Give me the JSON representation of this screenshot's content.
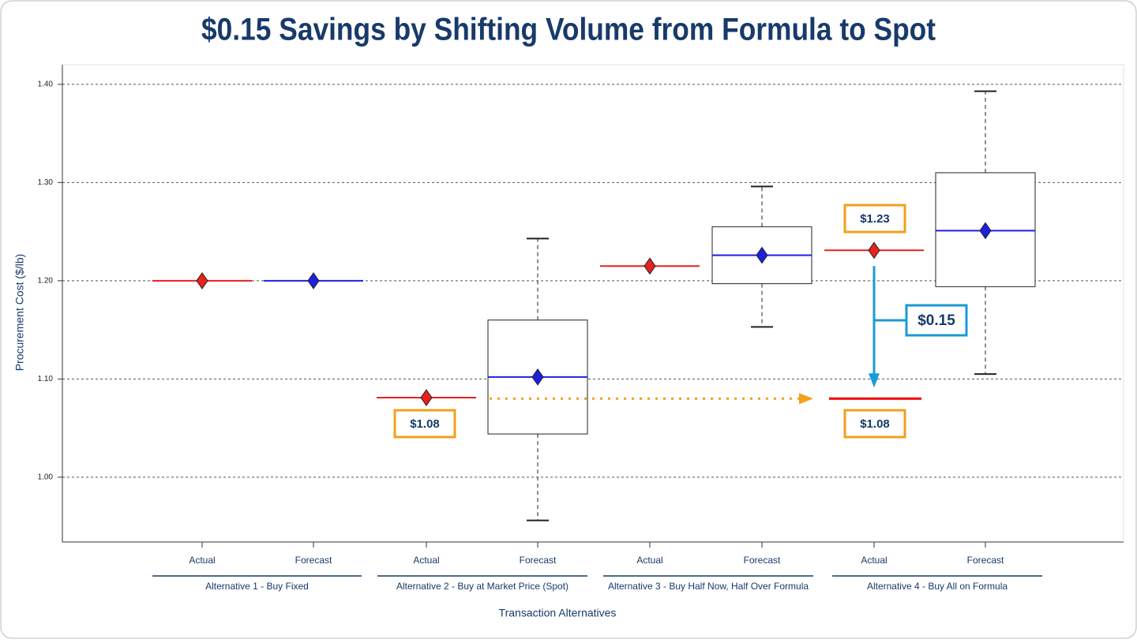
{
  "chart_data": {
    "type": "box",
    "title": "$0.15 Savings by Shifting Volume from Formula to Spot",
    "y_label": "Procurement Cost ($/lb)",
    "x_label": "Transaction Alternatives",
    "ylim": [
      0.934,
      1.42
    ],
    "yticks": [
      {
        "value": 1.0,
        "label": "1.00"
      },
      {
        "value": 1.1,
        "label": "1.10"
      },
      {
        "value": 1.2,
        "label": "1.20"
      },
      {
        "value": 1.3,
        "label": "1.30"
      },
      {
        "value": 1.4,
        "label": "1.40"
      }
    ],
    "grid": true,
    "actual_color": "#e8211d",
    "forecast_color": "#1f1fe0",
    "groups": [
      {
        "label": "Alternative 1 - Buy Fixed",
        "categories": [
          "Actual",
          "Forecast"
        ],
        "actual": 1.2,
        "forecast": {
          "mean": 1.2,
          "median": 1.2
        }
      },
      {
        "label": "Alternative 2 - Buy at Market Price (Spot)",
        "categories": [
          "Actual",
          "Forecast"
        ],
        "actual": 1.081,
        "forecast": {
          "whisker_low": 0.956,
          "q1": 1.044,
          "median": 1.102,
          "q3": 1.16,
          "whisker_high": 1.243,
          "mean": 1.102
        }
      },
      {
        "label": "Alternative 3 - Buy Half Now, Half Over Formula",
        "categories": [
          "Actual",
          "Forecast"
        ],
        "actual": 1.215,
        "forecast": {
          "whisker_low": 1.153,
          "q1": 1.197,
          "median": 1.226,
          "q3": 1.255,
          "whisker_high": 1.296,
          "mean": 1.226
        }
      },
      {
        "label": "Alternative 4 - Buy All on Formula",
        "categories": [
          "Actual",
          "Forecast"
        ],
        "actual": 1.231,
        "forecast": {
          "whisker_low": 1.105,
          "q1": 1.194,
          "median": 1.251,
          "q3": 1.31,
          "whisker_high": 1.393,
          "mean": 1.251
        }
      }
    ],
    "spot_line": 1.08,
    "annotations": [
      "$1.08",
      "$1.23",
      "$1.08",
      "$0.15"
    ]
  }
}
